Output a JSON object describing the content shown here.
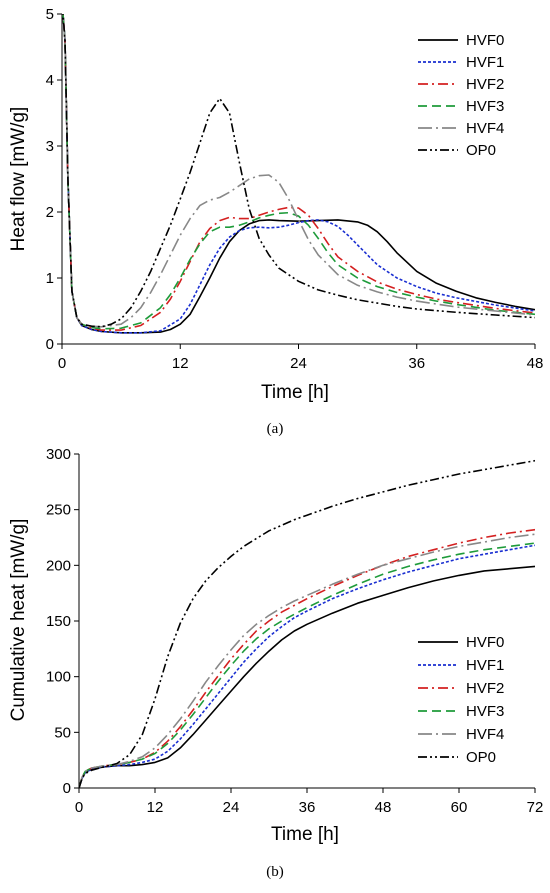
{
  "chart_data": [
    {
      "type": "line",
      "panel_label": "(a)",
      "xlabel": "Time [h]",
      "ylabel": "Heat flow [mW/g]",
      "xlim": [
        0,
        48
      ],
      "ylim": [
        0,
        5
      ],
      "xticks": [
        0,
        12,
        24,
        36,
        48
      ],
      "yticks": [
        0,
        1,
        2,
        3,
        4,
        5
      ],
      "grid": false,
      "legend_position": "top-right",
      "series": [
        {
          "name": "HVF0",
          "color": "#000000",
          "dash": "solid",
          "x": [
            0,
            0.3,
            0.6,
            1,
            1.5,
            2,
            3,
            4,
            6,
            8,
            10,
            11,
            12,
            13,
            14,
            15,
            16,
            17,
            18,
            19,
            20,
            21,
            22,
            24,
            26,
            28,
            30,
            31,
            32,
            33,
            34,
            36,
            38,
            40,
            42,
            44,
            46,
            48
          ],
          "y": [
            5.2,
            4.6,
            2.5,
            0.8,
            0.4,
            0.28,
            0.22,
            0.19,
            0.17,
            0.17,
            0.18,
            0.22,
            0.3,
            0.45,
            0.72,
            1.0,
            1.3,
            1.55,
            1.72,
            1.82,
            1.87,
            1.88,
            1.87,
            1.86,
            1.87,
            1.88,
            1.85,
            1.8,
            1.7,
            1.55,
            1.38,
            1.1,
            0.92,
            0.8,
            0.7,
            0.63,
            0.57,
            0.52
          ]
        },
        {
          "name": "HVF1",
          "color": "#1a2fd1",
          "dash": "dotted",
          "x": [
            0,
            0.3,
            0.6,
            1,
            1.5,
            2,
            3,
            4,
            6,
            8,
            10,
            12,
            13,
            14,
            15,
            16,
            17,
            18,
            19,
            20,
            21,
            22,
            23,
            24,
            25,
            26,
            27,
            28,
            29,
            30,
            31,
            32,
            34,
            36,
            38,
            40,
            44,
            48
          ],
          "y": [
            5.2,
            4.6,
            2.5,
            0.8,
            0.4,
            0.28,
            0.22,
            0.19,
            0.17,
            0.17,
            0.2,
            0.38,
            0.6,
            0.9,
            1.2,
            1.45,
            1.62,
            1.72,
            1.76,
            1.77,
            1.76,
            1.77,
            1.8,
            1.84,
            1.87,
            1.88,
            1.85,
            1.78,
            1.65,
            1.5,
            1.35,
            1.2,
            1.0,
            0.87,
            0.77,
            0.7,
            0.59,
            0.5
          ]
        },
        {
          "name": "HVF2",
          "color": "#d42020",
          "dash": "dashdot",
          "x": [
            0,
            0.3,
            0.6,
            1,
            1.5,
            2,
            3,
            4,
            6,
            8,
            10,
            11,
            12,
            13,
            14,
            15,
            16,
            17,
            18,
            19,
            20,
            21,
            22,
            23,
            24,
            25,
            26,
            27,
            28,
            30,
            32,
            34,
            36,
            38,
            40,
            44,
            48
          ],
          "y": [
            5.2,
            4.6,
            2.5,
            0.8,
            0.4,
            0.3,
            0.24,
            0.21,
            0.21,
            0.28,
            0.48,
            0.68,
            0.95,
            1.25,
            1.55,
            1.75,
            1.87,
            1.92,
            1.9,
            1.9,
            1.95,
            2.0,
            2.04,
            2.07,
            2.06,
            1.95,
            1.75,
            1.52,
            1.32,
            1.1,
            0.94,
            0.83,
            0.75,
            0.68,
            0.63,
            0.54,
            0.47
          ]
        },
        {
          "name": "HVF3",
          "color": "#1e9b3a",
          "dash": "dashed",
          "x": [
            0,
            0.3,
            0.6,
            1,
            1.5,
            2,
            3,
            4,
            6,
            8,
            10,
            11,
            12,
            13,
            14,
            15,
            16,
            17,
            18,
            19,
            20,
            21,
            22,
            23,
            24,
            25,
            26,
            27,
            28,
            30,
            32,
            34,
            36,
            38,
            40,
            44,
            48
          ],
          "y": [
            5.2,
            4.6,
            2.5,
            0.8,
            0.4,
            0.3,
            0.25,
            0.23,
            0.24,
            0.32,
            0.55,
            0.75,
            1.0,
            1.28,
            1.52,
            1.7,
            1.77,
            1.77,
            1.8,
            1.85,
            1.91,
            1.95,
            1.98,
            1.99,
            1.94,
            1.8,
            1.6,
            1.38,
            1.2,
            1.0,
            0.87,
            0.78,
            0.71,
            0.65,
            0.6,
            0.51,
            0.45
          ]
        },
        {
          "name": "HVF4",
          "color": "#888888",
          "dash": "longdashdot",
          "x": [
            0,
            0.3,
            0.6,
            1,
            1.5,
            2,
            3,
            4,
            6,
            7,
            8,
            9,
            10,
            11,
            12,
            13,
            14,
            15,
            16,
            17,
            18,
            19,
            20,
            21,
            22,
            23,
            24,
            25,
            26,
            28,
            30,
            32,
            34,
            36,
            40,
            44,
            48
          ],
          "y": [
            5.2,
            4.6,
            2.5,
            0.8,
            0.4,
            0.3,
            0.27,
            0.26,
            0.3,
            0.4,
            0.55,
            0.78,
            1.05,
            1.35,
            1.65,
            1.9,
            2.1,
            2.18,
            2.22,
            2.3,
            2.4,
            2.5,
            2.55,
            2.56,
            2.45,
            2.2,
            1.88,
            1.58,
            1.35,
            1.05,
            0.89,
            0.79,
            0.71,
            0.65,
            0.56,
            0.5,
            0.44
          ]
        },
        {
          "name": "OP0",
          "color": "#000000",
          "dash": "dashdotdot",
          "x": [
            0,
            0.3,
            0.6,
            1,
            1.5,
            2,
            3,
            4,
            5,
            6,
            7,
            8,
            9,
            10,
            11,
            12,
            13,
            14,
            15,
            16,
            17,
            18,
            19,
            20,
            21,
            22,
            24,
            26,
            28,
            30,
            32,
            34,
            36,
            40,
            44,
            48
          ],
          "y": [
            5.2,
            4.6,
            2.5,
            0.8,
            0.4,
            0.3,
            0.27,
            0.26,
            0.3,
            0.38,
            0.55,
            0.8,
            1.1,
            1.45,
            1.8,
            2.2,
            2.6,
            3.05,
            3.5,
            3.72,
            3.5,
            2.75,
            2.05,
            1.6,
            1.35,
            1.15,
            0.95,
            0.82,
            0.74,
            0.67,
            0.62,
            0.57,
            0.53,
            0.48,
            0.44,
            0.4
          ]
        }
      ]
    },
    {
      "type": "line",
      "panel_label": "(b)",
      "xlabel": "Time [h]",
      "ylabel": "Cumulative heat [mW/g]",
      "xlim": [
        0,
        72
      ],
      "ylim": [
        0,
        300
      ],
      "xticks": [
        0,
        12,
        24,
        36,
        48,
        60,
        72
      ],
      "yticks": [
        0,
        50,
        100,
        150,
        200,
        250,
        300
      ],
      "grid": false,
      "legend_position": "bottom-right",
      "series": [
        {
          "name": "HVF0",
          "color": "#000000",
          "dash": "solid",
          "x": [
            0,
            0.5,
            1,
            2,
            4,
            6,
            8,
            10,
            12,
            14,
            16,
            18,
            20,
            22,
            24,
            26,
            28,
            30,
            32,
            34,
            36,
            40,
            44,
            48,
            52,
            56,
            60,
            64,
            68,
            72
          ],
          "y": [
            0,
            9,
            14,
            17,
            19,
            20,
            20,
            21,
            23,
            27,
            36,
            48,
            61,
            74,
            87,
            100,
            112,
            123,
            133,
            141,
            147,
            157,
            166,
            173,
            180,
            186,
            191,
            195,
            197,
            199
          ]
        },
        {
          "name": "HVF1",
          "color": "#1a2fd1",
          "dash": "dotted",
          "x": [
            0,
            0.5,
            1,
            2,
            4,
            6,
            8,
            10,
            12,
            14,
            16,
            18,
            20,
            22,
            24,
            26,
            28,
            30,
            32,
            34,
            36,
            40,
            44,
            48,
            52,
            56,
            60,
            64,
            68,
            72
          ],
          "y": [
            0,
            9,
            14,
            17,
            19,
            20,
            21,
            23,
            26,
            33,
            44,
            57,
            71,
            85,
            99,
            113,
            125,
            136,
            145,
            153,
            159,
            170,
            179,
            187,
            194,
            200,
            206,
            210,
            214,
            218
          ]
        },
        {
          "name": "HVF2",
          "color": "#d42020",
          "dash": "dashdot",
          "x": [
            0,
            0.5,
            1,
            2,
            4,
            6,
            8,
            10,
            12,
            14,
            16,
            18,
            20,
            22,
            24,
            26,
            28,
            30,
            32,
            34,
            36,
            40,
            44,
            48,
            52,
            56,
            60,
            64,
            68,
            72
          ],
          "y": [
            0,
            10,
            15,
            18,
            20,
            21,
            23,
            26,
            32,
            42,
            55,
            70,
            86,
            101,
            116,
            129,
            141,
            150,
            158,
            164,
            170,
            181,
            191,
            200,
            208,
            214,
            220,
            225,
            229,
            232
          ]
        },
        {
          "name": "HVF3",
          "color": "#1e9b3a",
          "dash": "dashed",
          "x": [
            0,
            0.5,
            1,
            2,
            4,
            6,
            8,
            10,
            12,
            14,
            16,
            18,
            20,
            22,
            24,
            26,
            28,
            30,
            32,
            34,
            36,
            40,
            44,
            48,
            52,
            56,
            60,
            64,
            68,
            72
          ],
          "y": [
            0,
            10,
            15,
            18,
            20,
            21,
            23,
            26,
            31,
            40,
            52,
            66,
            81,
            96,
            110,
            123,
            134,
            143,
            150,
            156,
            162,
            173,
            183,
            192,
            199,
            205,
            210,
            214,
            217,
            220
          ]
        },
        {
          "name": "HVF4",
          "color": "#888888",
          "dash": "longdashdot",
          "x": [
            0,
            0.5,
            1,
            2,
            4,
            6,
            8,
            10,
            12,
            14,
            16,
            18,
            20,
            22,
            24,
            26,
            28,
            30,
            32,
            34,
            36,
            40,
            44,
            48,
            52,
            56,
            60,
            64,
            68,
            72
          ],
          "y": [
            0,
            10,
            15,
            18,
            20,
            21,
            24,
            28,
            36,
            48,
            62,
            78,
            95,
            110,
            124,
            137,
            147,
            155,
            162,
            168,
            173,
            183,
            192,
            200,
            206,
            212,
            217,
            221,
            225,
            228
          ]
        },
        {
          "name": "OP0",
          "color": "#000000",
          "dash": "dashdotdot",
          "x": [
            0,
            0.5,
            1,
            2,
            4,
            6,
            8,
            10,
            12,
            14,
            16,
            18,
            20,
            22,
            24,
            26,
            28,
            30,
            32,
            34,
            36,
            40,
            44,
            48,
            52,
            56,
            60,
            64,
            68,
            72
          ],
          "y": [
            0,
            9,
            13,
            16,
            19,
            22,
            30,
            48,
            80,
            118,
            148,
            170,
            186,
            198,
            208,
            217,
            224,
            231,
            236,
            241,
            245,
            253,
            260,
            266,
            272,
            277,
            282,
            286,
            290,
            294
          ]
        }
      ]
    }
  ]
}
